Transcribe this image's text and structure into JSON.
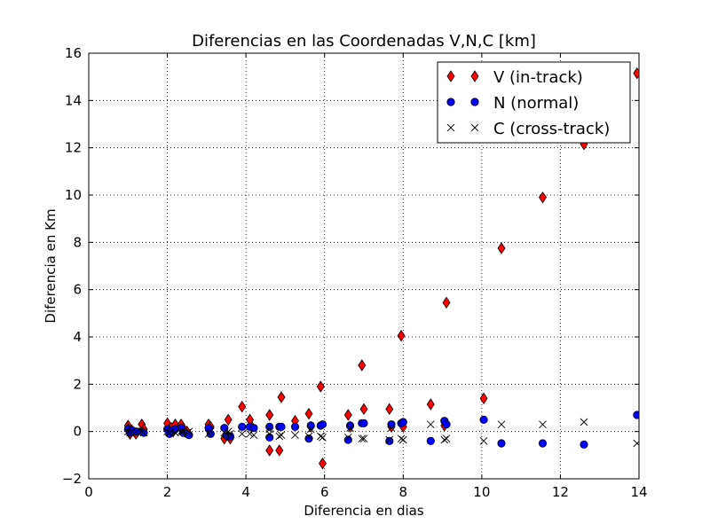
{
  "chart_data": {
    "type": "scatter",
    "title": "Diferencias en las Coordenadas V,N,C [km]",
    "xlabel": "Diferencia en dias",
    "ylabel": "Diferencia en Km",
    "xlim": [
      0,
      14
    ],
    "ylim": [
      -2,
      16
    ],
    "xticks": [
      0,
      2,
      4,
      6,
      8,
      10,
      12,
      14
    ],
    "yticks": [
      -2,
      0,
      2,
      4,
      6,
      8,
      10,
      12,
      14,
      16
    ],
    "grid": true,
    "legend_position": "top-right",
    "series": [
      {
        "name": "V (in-track)",
        "marker": "diamond",
        "color": "#ff0000",
        "points": [
          [
            1.0,
            0.25
          ],
          [
            1.0,
            0.1
          ],
          [
            1.05,
            -0.1
          ],
          [
            1.1,
            0.05
          ],
          [
            1.2,
            -0.1
          ],
          [
            1.35,
            0.3
          ],
          [
            1.4,
            0.1
          ],
          [
            2.0,
            0.35
          ],
          [
            2.05,
            0.1
          ],
          [
            2.1,
            0.15
          ],
          [
            2.15,
            0.0
          ],
          [
            2.2,
            0.3
          ],
          [
            2.35,
            0.3
          ],
          [
            2.4,
            0.15
          ],
          [
            2.5,
            0.0
          ],
          [
            3.05,
            0.3
          ],
          [
            3.1,
            0.2
          ],
          [
            3.45,
            -0.3
          ],
          [
            3.5,
            -0.15
          ],
          [
            3.55,
            0.5
          ],
          [
            3.6,
            -0.3
          ],
          [
            3.9,
            1.05
          ],
          [
            4.1,
            0.5
          ],
          [
            4.15,
            0.2
          ],
          [
            4.6,
            0.7
          ],
          [
            4.6,
            -0.8
          ],
          [
            4.85,
            -0.8
          ],
          [
            4.9,
            1.45
          ],
          [
            5.25,
            0.45
          ],
          [
            5.6,
            0.75
          ],
          [
            5.65,
            0.2
          ],
          [
            5.9,
            1.9
          ],
          [
            5.95,
            -1.35
          ],
          [
            6.6,
            0.7
          ],
          [
            6.65,
            0.2
          ],
          [
            6.95,
            2.8
          ],
          [
            7.0,
            0.95
          ],
          [
            7.65,
            0.95
          ],
          [
            7.7,
            0.2
          ],
          [
            7.95,
            4.05
          ],
          [
            8.0,
            0.2
          ],
          [
            8.7,
            1.15
          ],
          [
            9.05,
            0.25
          ],
          [
            9.1,
            5.45
          ],
          [
            10.05,
            1.4
          ],
          [
            10.5,
            7.75
          ],
          [
            11.55,
            9.9
          ],
          [
            12.6,
            12.15
          ],
          [
            13.95,
            15.15
          ]
        ]
      },
      {
        "name": "N (normal)",
        "marker": "circle",
        "color": "#0000ff",
        "points": [
          [
            1.0,
            0.1
          ],
          [
            1.05,
            -0.05
          ],
          [
            1.1,
            0.05
          ],
          [
            1.2,
            0.0
          ],
          [
            1.35,
            0.0
          ],
          [
            1.4,
            -0.05
          ],
          [
            2.0,
            0.1
          ],
          [
            2.05,
            -0.1
          ],
          [
            2.1,
            0.05
          ],
          [
            2.2,
            0.1
          ],
          [
            2.35,
            0.15
          ],
          [
            2.4,
            -0.05
          ],
          [
            2.5,
            -0.1
          ],
          [
            2.55,
            -0.15
          ],
          [
            3.05,
            0.15
          ],
          [
            3.1,
            -0.1
          ],
          [
            3.45,
            0.15
          ],
          [
            3.5,
            -0.15
          ],
          [
            3.55,
            -0.2
          ],
          [
            3.6,
            -0.2
          ],
          [
            3.9,
            0.2
          ],
          [
            4.1,
            0.2
          ],
          [
            4.2,
            0.15
          ],
          [
            4.6,
            0.2
          ],
          [
            4.6,
            -0.25
          ],
          [
            4.85,
            0.2
          ],
          [
            4.9,
            0.2
          ],
          [
            5.25,
            0.2
          ],
          [
            5.6,
            -0.3
          ],
          [
            5.65,
            0.25
          ],
          [
            5.9,
            0.25
          ],
          [
            5.95,
            0.3
          ],
          [
            6.6,
            -0.35
          ],
          [
            6.65,
            0.25
          ],
          [
            6.95,
            0.35
          ],
          [
            7.0,
            0.35
          ],
          [
            7.65,
            -0.4
          ],
          [
            7.7,
            0.3
          ],
          [
            7.95,
            0.35
          ],
          [
            8.0,
            0.4
          ],
          [
            8.7,
            -0.4
          ],
          [
            9.05,
            0.45
          ],
          [
            9.1,
            0.3
          ],
          [
            10.05,
            0.5
          ],
          [
            10.5,
            -0.5
          ],
          [
            11.55,
            -0.5
          ],
          [
            12.6,
            -0.55
          ],
          [
            13.95,
            0.7
          ]
        ]
      },
      {
        "name": "C (cross-track)",
        "marker": "x",
        "color": "#000000",
        "points": [
          [
            1.0,
            0.0
          ],
          [
            1.05,
            -0.05
          ],
          [
            1.1,
            0.0
          ],
          [
            1.2,
            0.0
          ],
          [
            1.35,
            0.0
          ],
          [
            1.4,
            -0.05
          ],
          [
            2.0,
            0.0
          ],
          [
            2.05,
            -0.05
          ],
          [
            2.1,
            0.0
          ],
          [
            2.2,
            -0.05
          ],
          [
            2.35,
            0.0
          ],
          [
            2.4,
            0.0
          ],
          [
            2.5,
            -0.05
          ],
          [
            2.55,
            0.0
          ],
          [
            3.05,
            -0.1
          ],
          [
            3.1,
            0.0
          ],
          [
            3.45,
            -0.05
          ],
          [
            3.5,
            -0.1
          ],
          [
            3.55,
            0.0
          ],
          [
            3.6,
            -0.1
          ],
          [
            3.9,
            -0.1
          ],
          [
            4.1,
            -0.1
          ],
          [
            4.2,
            -0.15
          ],
          [
            4.6,
            -0.1
          ],
          [
            4.6,
            0.1
          ],
          [
            4.85,
            -0.2
          ],
          [
            4.9,
            -0.15
          ],
          [
            5.25,
            -0.15
          ],
          [
            5.6,
            -0.2
          ],
          [
            5.65,
            0.1
          ],
          [
            5.9,
            -0.2
          ],
          [
            5.95,
            -0.25
          ],
          [
            6.6,
            -0.25
          ],
          [
            6.65,
            0.15
          ],
          [
            6.95,
            -0.3
          ],
          [
            7.0,
            -0.3
          ],
          [
            7.65,
            -0.35
          ],
          [
            7.7,
            0.15
          ],
          [
            7.95,
            -0.3
          ],
          [
            8.0,
            -0.35
          ],
          [
            8.7,
            0.3
          ],
          [
            9.05,
            -0.35
          ],
          [
            9.1,
            -0.3
          ],
          [
            10.05,
            -0.4
          ],
          [
            10.5,
            0.3
          ],
          [
            11.55,
            0.3
          ],
          [
            12.6,
            0.4
          ],
          [
            13.95,
            -0.5
          ]
        ]
      }
    ]
  }
}
